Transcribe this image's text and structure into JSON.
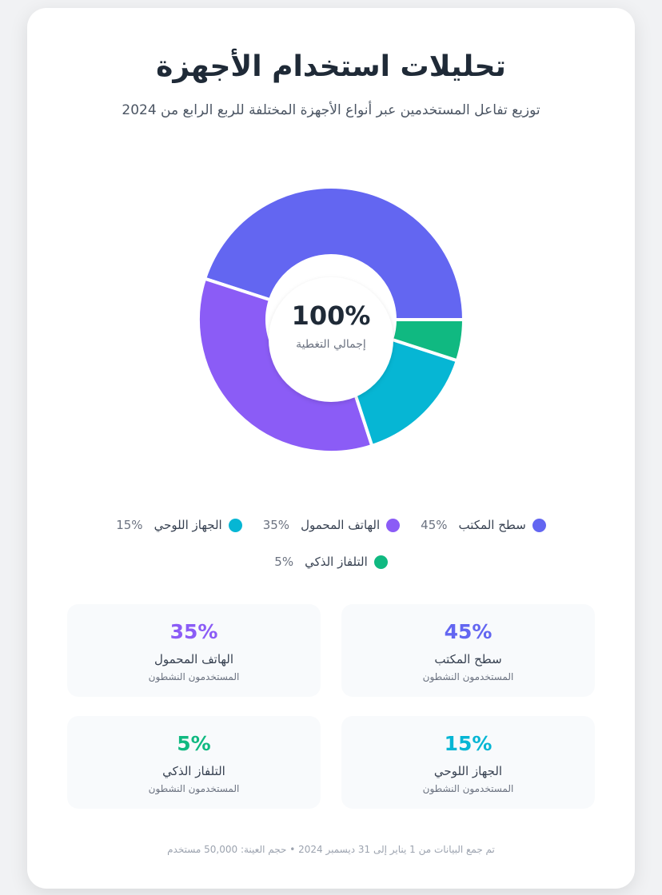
{
  "title": "تحليلات استخدام الأجهزة",
  "subtitle": "توزيع تفاعل المستخدمين عبر أنواع الأجهزة المختلفة للربع الرابع من 2024",
  "center": {
    "value": "100%",
    "label": "إجمالي التغطية"
  },
  "chart_data": {
    "type": "pie",
    "title": "تحليلات استخدام الأجهزة",
    "categories": [
      "سطح المكتب",
      "الهاتف المحمول",
      "الجهاز اللوحي",
      "التلفاز الذكي"
    ],
    "values": [
      45,
      35,
      15,
      5
    ],
    "colors": [
      "#6366f1",
      "#8b5cf6",
      "#06b6d4",
      "#10b981"
    ],
    "legend": "bottom"
  },
  "legend": [
    {
      "label": "سطح المكتب",
      "value": "45%",
      "color": "#6366f1"
    },
    {
      "label": "الهاتف المحمول",
      "value": "35%",
      "color": "#8b5cf6"
    },
    {
      "label": "الجهاز اللوحي",
      "value": "15%",
      "color": "#06b6d4"
    },
    {
      "label": "التلفاز الذكي",
      "value": "5%",
      "color": "#10b981"
    }
  ],
  "stats": [
    {
      "value": "45%",
      "label": "سطح المكتب",
      "sub": "المستخدمون النشطون",
      "color": "#6366f1"
    },
    {
      "value": "35%",
      "label": "الهاتف المحمول",
      "sub": "المستخدمون النشطون",
      "color": "#8b5cf6"
    },
    {
      "value": "15%",
      "label": "الجهاز اللوحي",
      "sub": "المستخدمون النشطون",
      "color": "#06b6d4"
    },
    {
      "value": "5%",
      "label": "التلفاز الذكي",
      "sub": "المستخدمون النشطون",
      "color": "#10b981"
    }
  ],
  "footer": "تم جمع البيانات من 1 يناير إلى 31 ديسمبر 2024 • حجم العينة: 50,000 مستخدم"
}
